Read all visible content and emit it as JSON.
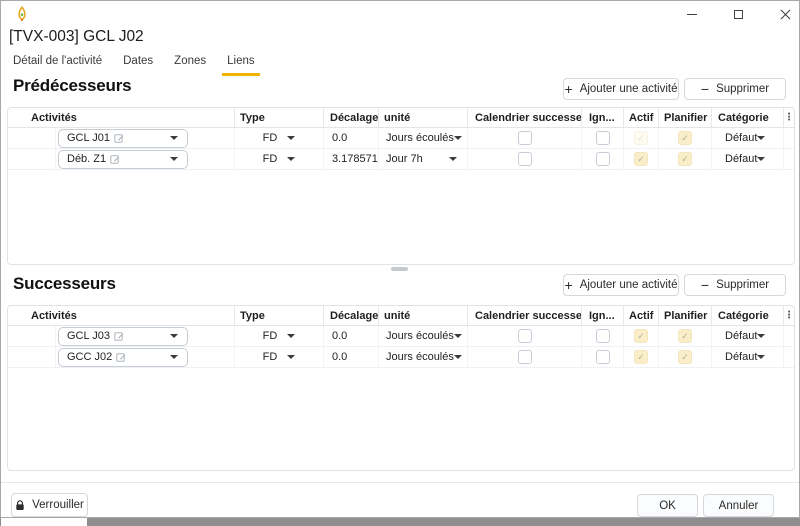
{
  "window": {
    "title": "[TVX-003] GCL J02"
  },
  "icons": {
    "app": "pen-nib-icon",
    "minimize": "minimize-icon",
    "maximize": "maximize-icon",
    "close": "close-icon",
    "lock": "lock-icon",
    "column_menu_glyph": "⋮",
    "add_glyph": "+",
    "remove_glyph": "−",
    "check_glyph": "✓"
  },
  "colors": {
    "accent_tab_underline": "#f0b400",
    "checkbox_checked_bg": "#faeec8",
    "window_background": "#ffffff",
    "desktop_strip": "#8f8f8f"
  },
  "tabs": [
    {
      "label": "Détail de l'activité",
      "active": false
    },
    {
      "label": "Dates",
      "active": false
    },
    {
      "label": "Zones",
      "active": false
    },
    {
      "label": "Liens",
      "active": true
    }
  ],
  "table_columns": [
    "Activités",
    "Type",
    "Décalage",
    "unité",
    "Calendrier successeur",
    "Ign...",
    "Actif",
    "Planifier",
    "Catégorie"
  ],
  "sections": [
    {
      "title": "Prédécesseurs",
      "add_label": "Ajouter une activité",
      "remove_label": "Supprimer",
      "rows": [
        {
          "activity": "GCL J01",
          "type": "FD",
          "lag": "0.0",
          "unit": "Jours écoulés",
          "successor_calendar": false,
          "ignore": false,
          "active": "faded",
          "plan": true,
          "category": "Défaut"
        },
        {
          "activity": "Déb. Z1",
          "type": "FD",
          "lag": "3.17857142",
          "unit": "Jour 7h",
          "successor_calendar": false,
          "ignore": false,
          "active": true,
          "plan": true,
          "category": "Défaut"
        }
      ]
    },
    {
      "title": "Successeurs",
      "add_label": "Ajouter une activité",
      "remove_label": "Supprimer",
      "rows": [
        {
          "activity": "GCL J03",
          "type": "FD",
          "lag": "0.0",
          "unit": "Jours écoulés",
          "successor_calendar": false,
          "ignore": false,
          "active": true,
          "plan": true,
          "category": "Défaut"
        },
        {
          "activity": "GCC J02",
          "type": "FD",
          "lag": "0.0",
          "unit": "Jours écoulés",
          "successor_calendar": false,
          "ignore": false,
          "active": true,
          "plan": true,
          "category": "Défaut"
        }
      ]
    }
  ],
  "footer": {
    "lock": "Verrouiller",
    "ok": "OK",
    "cancel": "Annuler"
  }
}
